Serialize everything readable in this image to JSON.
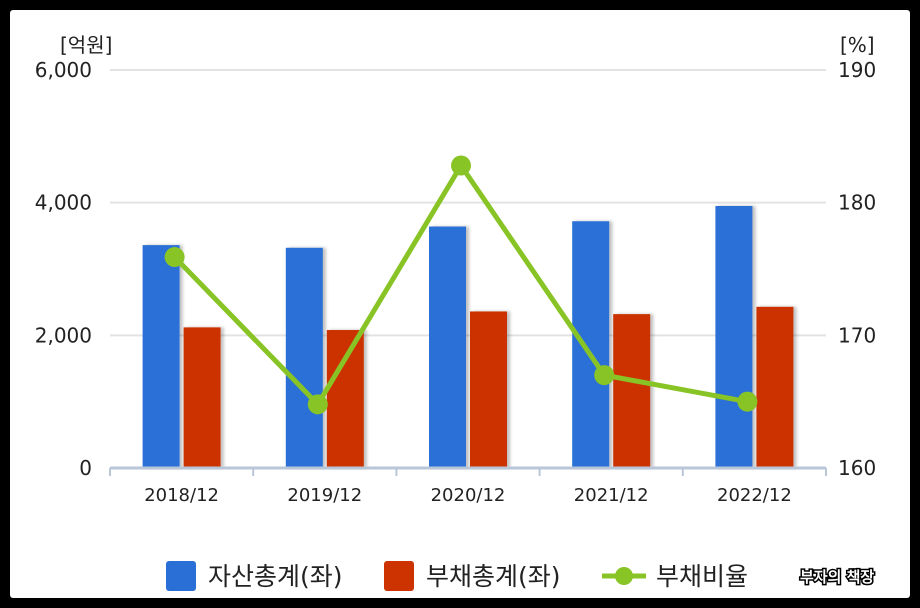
{
  "chart_data": {
    "type": "bar",
    "title": "",
    "categories": [
      "2018/12",
      "2019/12",
      "2020/12",
      "2021/12",
      "2022/12"
    ],
    "left_axis": {
      "unit": "[억원]",
      "ylim": [
        0,
        6000
      ],
      "ticks": [
        0,
        2000,
        4000,
        6000
      ],
      "tick_labels": [
        "0",
        "2,000",
        "4,000",
        "6,000"
      ]
    },
    "right_axis": {
      "unit": "[%]",
      "ylim": [
        160,
        190
      ],
      "ticks": [
        160,
        170,
        180,
        190
      ],
      "tick_labels": [
        "160",
        "170",
        "180",
        "190"
      ]
    },
    "series": [
      {
        "name": "자산총계(좌)",
        "type": "bar",
        "axis": "left",
        "color": "#2a6fd6",
        "values": [
          3360,
          3320,
          3640,
          3720,
          3950
        ]
      },
      {
        "name": "부채총계(좌)",
        "type": "bar",
        "axis": "left",
        "color": "#cc3300",
        "values": [
          2120,
          2080,
          2360,
          2320,
          2430
        ]
      },
      {
        "name": "부채비율",
        "type": "line",
        "axis": "right",
        "color": "#88c425",
        "values": [
          175.9,
          164.8,
          182.8,
          167.0,
          165.0
        ]
      }
    ],
    "grid": true,
    "legend_position": "bottom"
  },
  "watermark": "부자의 책장"
}
